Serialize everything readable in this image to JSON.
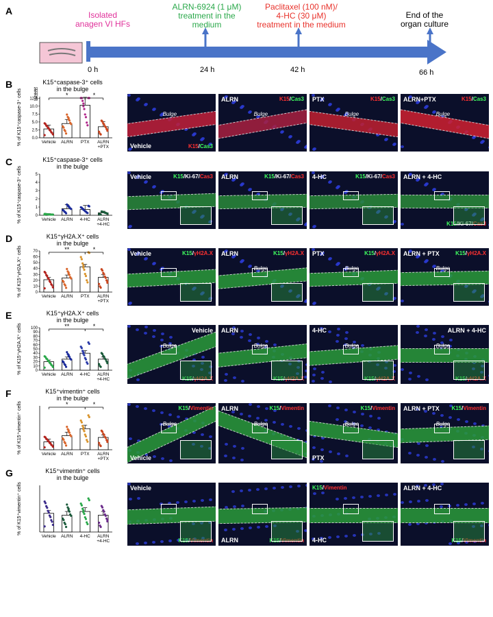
{
  "panels": {
    "A": "A",
    "B": "B",
    "C": "C",
    "D": "D",
    "E": "E",
    "F": "F",
    "G": "G"
  },
  "timeline": {
    "events": [
      {
        "label": "Isolated\nanagen VI HFs",
        "time": "0 h",
        "color": "#e0309a"
      },
      {
        "label": "ALRN-6924 (1 μM)\ntreatment in the\nmedium",
        "time": "24 h",
        "color": "#2aa84a"
      },
      {
        "label": "Paclitaxel (100 nM)/\n4-HC (30 μM)\ntreatment in the medium",
        "time": "42 h",
        "color": "#e8312a"
      },
      {
        "label": "End of the\norgan culture",
        "time": "66 h",
        "color": "#000000"
      }
    ],
    "arrow_color": "#4a74c8"
  },
  "chart_data": [
    {
      "type": "bar",
      "panel": "B",
      "title": "K15⁺caspase-3⁺ cells\nin the bulge",
      "ylabel": "% of K15⁺caspase-3⁺ cells",
      "categories": [
        "Vehicle",
        "ALRN",
        "PTX",
        "ALRN\n+PTX"
      ],
      "values": [
        2.8,
        4.5,
        10.3,
        3.5
      ],
      "errors": [
        1.2,
        1.3,
        2.5,
        1.6
      ],
      "yticks_upper": [
        "50",
        "40",
        "30",
        "20",
        "15",
        "10"
      ],
      "yticks_lower": [
        "12.5",
        "10.0",
        "7.5",
        "5.0",
        "2.5",
        "0.0"
      ],
      "ylim": [
        0,
        13
      ],
      "significance": [
        "*",
        "*"
      ],
      "point_colors": [
        "#b2221d",
        "#d9652b",
        "#b0268a",
        "#c8451e"
      ]
    },
    {
      "type": "bar",
      "panel": "C",
      "title": "K15⁺caspase-3⁺ cells\nin the bulge",
      "ylabel": "% of K15⁺caspase-3⁺ cells",
      "categories": [
        "Vehicle",
        "ALRN",
        "4-HC",
        "ALRN\n+4-HC"
      ],
      "values": [
        0.1,
        0.8,
        0.7,
        0.3
      ],
      "errors": [
        0.1,
        0.5,
        0.5,
        0.2
      ],
      "yticks": [
        "5",
        "4",
        "3",
        "2",
        "1",
        "0"
      ],
      "ylim": [
        0,
        5
      ],
      "point_colors": [
        "#2aa84a",
        "#1a2a9a",
        "#1a2a9a",
        "#1a5a3a"
      ]
    },
    {
      "type": "bar",
      "panel": "D",
      "title": "K15⁺γH2A.X⁺ cells\nin the bulge",
      "ylabel": "% of K15⁺γH2A.X⁺ cells",
      "categories": [
        "Vehicle",
        "ALRN",
        "PTX",
        "ALRN\n+PTX"
      ],
      "values": [
        21,
        24,
        43,
        25
      ],
      "errors": [
        4,
        5,
        4,
        5
      ],
      "yticks": [
        "70",
        "60",
        "50",
        "40",
        "30",
        "20",
        "10",
        "0"
      ],
      "ylim": [
        0,
        70
      ],
      "significance": [
        "**",
        "*"
      ],
      "point_colors": [
        "#b2221d",
        "#d9652b",
        "#d9932b",
        "#c8451e"
      ]
    },
    {
      "type": "bar",
      "panel": "E",
      "title": "K15⁺γH2A.X⁺ cells\nin the bulge",
      "ylabel": "% of K15⁺γH2A.X⁺ cells",
      "categories": [
        "Vehicle",
        "ALRN",
        "4-HC",
        "ALRN\n+4-HC"
      ],
      "values": [
        20,
        26,
        40,
        26
      ],
      "errors": [
        4,
        5,
        6,
        5
      ],
      "yticks": [
        "100",
        "90",
        "80",
        "70",
        "60",
        "50",
        "40",
        "30",
        "20",
        "10",
        "0"
      ],
      "ylim": [
        0,
        100
      ],
      "significance": [
        "**",
        "*"
      ],
      "point_colors": [
        "#2aa84a",
        "#1a2a9a",
        "#2a3aa8",
        "#1a5a3a"
      ]
    },
    {
      "type": "bar",
      "panel": "F",
      "title": "K15⁺vimentin⁺ cells\nin the bulge",
      "ylabel": "% of K15⁺vimentin⁺ cells",
      "categories": [
        "Vehicle",
        "ALRN",
        "PTX",
        "ALRN\n+PTX"
      ],
      "values": [
        0.9,
        1.6,
        2.4,
        1.4
      ],
      "errors": [
        0.3,
        0.4,
        0.4,
        0.3
      ],
      "ylim": [
        0,
        5
      ],
      "significance": [
        "*",
        "*"
      ],
      "point_colors": [
        "#b2221d",
        "#d9652b",
        "#d9932b",
        "#c8451e"
      ]
    },
    {
      "type": "bar",
      "panel": "G",
      "title": "K15⁺vimentin⁺ cells\nin the bulge",
      "ylabel": "% of K15⁺vimentin⁺ cells",
      "categories": [
        "Vehicle",
        "ALRN",
        "4-HC",
        "ALRN\n+4-HC"
      ],
      "values": [
        1.0,
        0.9,
        1.1,
        0.9
      ],
      "errors": [
        0.15,
        0.2,
        0.2,
        0.2
      ],
      "ylim": [
        0,
        2.5
      ],
      "point_colors": [
        "#3a2a8a",
        "#1a5a3a",
        "#2aa84a",
        "#6a2a8a"
      ]
    }
  ],
  "micrographs": {
    "B": [
      {
        "condition": "Vehicle",
        "cond_pos": "bl",
        "stain": [
          [
            "K15",
            "#ff3030"
          ],
          [
            "/",
            "#ffffff"
          ],
          [
            "Cas3",
            "#40ff60"
          ]
        ],
        "stain_pos": "br",
        "region": "Bulge",
        "tissue": "#c0203a",
        "angle": -8
      },
      {
        "condition": "ALRN",
        "cond_pos": "tl",
        "stain": [
          [
            "K15",
            "#ff3030"
          ],
          [
            "/",
            "#ffffff"
          ],
          [
            "Cas3",
            "#40ff60"
          ]
        ],
        "stain_pos": "tr",
        "region": "Bulge",
        "tissue": "#a82040",
        "angle": -10
      },
      {
        "condition": "PTX",
        "cond_pos": "tl",
        "stain": [
          [
            "K15",
            "#ff3030"
          ],
          [
            "/",
            "#ffffff"
          ],
          [
            "Cas3",
            "#40ff60"
          ]
        ],
        "stain_pos": "tr",
        "region": "Bulge",
        "tissue": "#c02030",
        "angle": 8
      },
      {
        "condition": "ALRN+PTX",
        "cond_pos": "tl",
        "stain": [
          [
            "K15",
            "#ff3030"
          ],
          [
            "/",
            "#ffffff"
          ],
          [
            "Cas3",
            "#40ff60"
          ]
        ],
        "stain_pos": "tr",
        "region": "Bulge",
        "tissue": "#d02030",
        "angle": 10
      }
    ],
    "C": [
      {
        "condition": "Vehicle",
        "cond_pos": "tl",
        "stain": [
          [
            "K15",
            "#40ff60"
          ],
          [
            "/Ki-67/",
            "#ffffff"
          ],
          [
            "Cas3",
            "#ff3030"
          ]
        ],
        "stain_pos": "tr",
        "region": "",
        "tissue": "#2a8a3a",
        "angle": -2
      },
      {
        "condition": "ALRN",
        "cond_pos": "tl",
        "stain": [
          [
            "K15",
            "#40ff60"
          ],
          [
            "/Ki-67/",
            "#ffffff"
          ],
          [
            "Cas3",
            "#ff3030"
          ]
        ],
        "stain_pos": "tr",
        "region": "",
        "tissue": "#2a8a3a",
        "angle": -1
      },
      {
        "condition": "4-HC",
        "cond_pos": "tl",
        "stain": [
          [
            "K15",
            "#40ff60"
          ],
          [
            "/Ki-67/",
            "#ffffff"
          ],
          [
            "Cas3",
            "#ff3030"
          ]
        ],
        "stain_pos": "tr",
        "region": "",
        "tissue": "#2a8a3a",
        "angle": -1
      },
      {
        "condition": "ALRN + 4-HC",
        "cond_pos": "tl",
        "stain": [
          [
            "K15",
            "#40ff60"
          ],
          [
            "/Ki-67/",
            "#ffffff"
          ],
          [
            "Cas3",
            "#ff3030"
          ]
        ],
        "stain_pos": "br",
        "region": "",
        "tissue": "#2a8a3a",
        "angle": 0
      }
    ],
    "D": [
      {
        "condition": "Vehicle",
        "cond_pos": "tl",
        "stain": [
          [
            "K15",
            "#40ff60"
          ],
          [
            "/",
            "#ffffff"
          ],
          [
            "γH2A.X",
            "#ff3030"
          ]
        ],
        "stain_pos": "tr",
        "region": "",
        "tissue": "#2a9a3a",
        "angle": -3
      },
      {
        "condition": "ALRN",
        "cond_pos": "tl",
        "stain": [
          [
            "K15",
            "#40ff60"
          ],
          [
            "/",
            "#ffffff"
          ],
          [
            "γH2A.X",
            "#ff3030"
          ]
        ],
        "stain_pos": "tr",
        "region": "Bulge",
        "tissue": "#2a9a3a",
        "angle": -5
      },
      {
        "condition": "PTX",
        "cond_pos": "tl",
        "stain": [
          [
            "K15",
            "#40ff60"
          ],
          [
            "/",
            "#ffffff"
          ],
          [
            "γH2A.X",
            "#ff3030"
          ]
        ],
        "stain_pos": "tr",
        "region": "Bulge",
        "tissue": "#2a9a3a",
        "angle": -2
      },
      {
        "condition": "ALRN + PTX",
        "cond_pos": "tl",
        "stain": [
          [
            "K15",
            "#40ff60"
          ],
          [
            "/",
            "#ffffff"
          ],
          [
            "γH2A.X",
            "#ff3030"
          ]
        ],
        "stain_pos": "tr",
        "region": "Bulge",
        "tissue": "#2a9a3a",
        "angle": -1
      }
    ],
    "E": [
      {
        "condition": "Vehicle",
        "cond_pos": "tr",
        "stain": [
          [
            "K15",
            "#40ff60"
          ],
          [
            "/",
            "#ffffff"
          ],
          [
            "γH2A.X",
            "#ff3030"
          ]
        ],
        "stain_pos": "br",
        "region": "Bulge",
        "tissue": "#2a9a3a",
        "angle": -20
      },
      {
        "condition": "ALRN",
        "cond_pos": "tl",
        "stain": [
          [
            "K15",
            "#40ff60"
          ],
          [
            "/",
            "#ffffff"
          ],
          [
            "γH2A.X",
            "#ff3030"
          ]
        ],
        "stain_pos": "br",
        "region": "Bulge",
        "tissue": "#2a9a3a",
        "angle": -6
      },
      {
        "condition": "4-HC",
        "cond_pos": "tl",
        "stain": [
          [
            "K15",
            "#40ff60"
          ],
          [
            "/",
            "#ffffff"
          ],
          [
            "γH2A.X",
            "#ff3030"
          ]
        ],
        "stain_pos": "br",
        "region": "Bulge",
        "tissue": "#2a9a3a",
        "angle": -4
      },
      {
        "condition": "ALRN + 4-HC",
        "cond_pos": "tr",
        "stain": [
          [
            "K15",
            "#40ff60"
          ],
          [
            "/",
            "#ffffff"
          ],
          [
            "γH2A.X",
            "#ff3030"
          ]
        ],
        "stain_pos": "br",
        "region": "Bulge",
        "tissue": "#2a9a3a",
        "angle": 0
      }
    ],
    "F": [
      {
        "condition": "Vehicle",
        "cond_pos": "bl",
        "stain": [
          [
            "K15",
            "#40ff60"
          ],
          [
            "/",
            "#ffffff"
          ],
          [
            "Vimentin",
            "#ff3030"
          ]
        ],
        "stain_pos": "tr",
        "region": "Bulge",
        "tissue": "#2a9a3a",
        "angle": -25
      },
      {
        "condition": "ALRN",
        "cond_pos": "tl",
        "stain": [
          [
            "K15",
            "#40ff60"
          ],
          [
            "/",
            "#ffffff"
          ],
          [
            "Vimentin",
            "#ff3030"
          ]
        ],
        "stain_pos": "tr",
        "region": "Bulge",
        "tissue": "#2a9a3a",
        "angle": 20
      },
      {
        "condition": "PTX",
        "cond_pos": "bl",
        "stain": [
          [
            "K15",
            "#40ff60"
          ],
          [
            "/",
            "#ffffff"
          ],
          [
            "Vimentin",
            "#ff3030"
          ]
        ],
        "stain_pos": "tr",
        "region": "Bulge",
        "tissue": "#2a9a3a",
        "angle": 8
      },
      {
        "condition": "ALRN + PTX",
        "cond_pos": "tl",
        "stain": [
          [
            "K15",
            "#40ff60"
          ],
          [
            "/",
            "#ffffff"
          ],
          [
            "Vimentin",
            "#ff3030"
          ]
        ],
        "stain_pos": "tr",
        "region": "Bulge",
        "tissue": "#2a9a3a",
        "angle": -2
      }
    ],
    "G": [
      {
        "condition": "Vehicle",
        "cond_pos": "tl",
        "stain": [
          [
            "K15",
            "#40ff60"
          ],
          [
            "/",
            "#ffffff"
          ],
          [
            "Vimentin",
            "#ff3030"
          ]
        ],
        "stain_pos": "br",
        "region": "",
        "tissue": "#2a9a3a",
        "angle": -2
      },
      {
        "condition": "ALRN",
        "cond_pos": "bl",
        "stain": [
          [
            "K15",
            "#40ff60"
          ],
          [
            "/",
            "#ffffff"
          ],
          [
            "Vimentin",
            "#ff3030"
          ]
        ],
        "stain_pos": "br",
        "region": "",
        "tissue": "#2a9a3a",
        "angle": -1
      },
      {
        "condition": "4-HC",
        "cond_pos": "bl",
        "stain": [
          [
            "K15",
            "#40ff60"
          ],
          [
            "/",
            "#ffffff"
          ],
          [
            "Vimentin",
            "#ff3030"
          ]
        ],
        "stain_pos": "tl",
        "region": "",
        "tissue": "#2a9a3a",
        "angle": 0
      },
      {
        "condition": "ALRN + 4-HC",
        "cond_pos": "tl",
        "stain": [
          [
            "K15",
            "#40ff60"
          ],
          [
            "/",
            "#ffffff"
          ],
          [
            "Vimentin",
            "#ff3030"
          ]
        ],
        "stain_pos": "br",
        "region": "",
        "tissue": "#2a9a3a",
        "angle": 0
      }
    ]
  }
}
